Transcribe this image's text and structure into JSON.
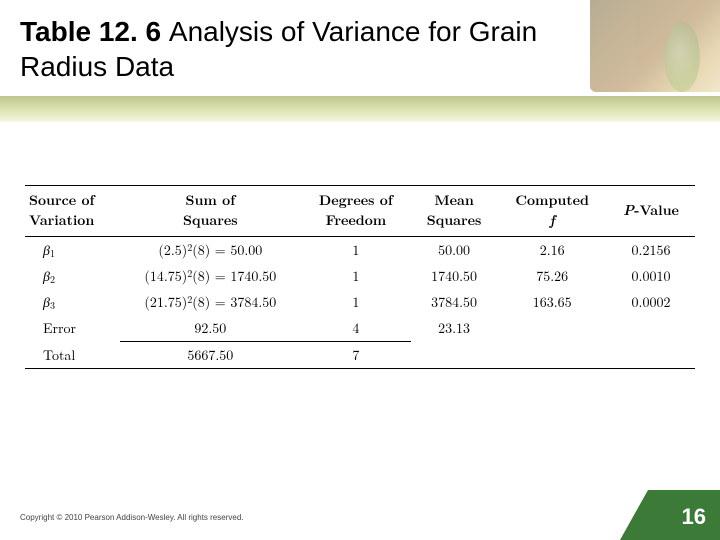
{
  "title": {
    "bold": "Table 12. 6",
    "rest": "Analysis of Variance for Grain Radius Data"
  },
  "table": {
    "headers": {
      "src": "Source of<br>Variation",
      "ss": "Sum of<br>Squares",
      "df": "Degrees of<br>Freedom",
      "ms": "Mean<br>Squares",
      "f": "Computed<br><span class=\"ital\">f</span>",
      "p": "<span class=\"ital\">P</span>-Value"
    },
    "rows": [
      {
        "src": "<span class=\"beta\">β</span><span class=\"sub\">1</span>",
        "ss": "(2.5)<span class=\"sup\">2</span>(8) = 50.00",
        "df": "1",
        "ms": "50.00",
        "f": "2.16",
        "p": "0.2156"
      },
      {
        "src": "<span class=\"beta\">β</span><span class=\"sub\">2</span>",
        "ss": "(14.75)<span class=\"sup\">2</span>(8) = 1740.50",
        "df": "1",
        "ms": "1740.50",
        "f": "75.26",
        "p": "0.0010"
      },
      {
        "src": "<span class=\"beta\">β</span><span class=\"sub\">3</span>",
        "ss": "(21.75)<span class=\"sup\">2</span>(8) = 3784.50",
        "df": "1",
        "ms": "3784.50",
        "f": "163.65",
        "p": "0.0002"
      },
      {
        "src": "Error",
        "ss": "92.50",
        "df": "4",
        "ms": "23.13",
        "f": "",
        "p": ""
      },
      {
        "src": "Total",
        "ss": "5667.50",
        "df": "7",
        "ms": "",
        "f": "",
        "p": ""
      }
    ]
  },
  "footer": {
    "credit": "Copyright © 2010 Pearson Addison-Wesley. All rights reserved.",
    "page": "16"
  },
  "colors": {
    "page_badge": "#3b7a37",
    "band_start": "#86972c",
    "band_end": "#ecefc9"
  }
}
